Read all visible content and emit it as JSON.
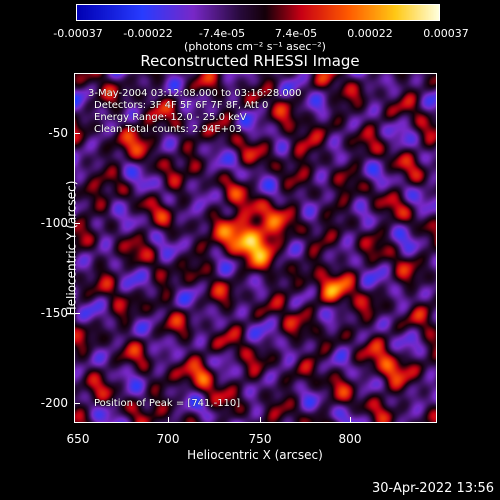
{
  "colorbar": {
    "tick_labels": [
      "-0.00037",
      "-0.00022",
      "-7.4e-05",
      "7.4e-05",
      "0.00022",
      "0.00037"
    ],
    "unit_label": "(photons cm⁻² s⁻¹ asec⁻²)"
  },
  "title": "Reconstructed RHESSI Image",
  "annotations": {
    "time_range": "3-May-2004 03:12:08.000 to 03:16:28.000",
    "detectors": "Detectors: 3F 4F 5F 6F 7F 8F, Att 0",
    "energy_range": "Energy Range: 12.0 - 25.0 keV",
    "clean_counts": "Clean    Total counts: 2.94E+03",
    "peak_position": "Position of Peak = [741,-110]"
  },
  "axes": {
    "xlabel": "Heliocentric X (arcsec)",
    "ylabel": "Heliocentric Y (arcsec)",
    "x_ticks": [
      "650",
      "700",
      "750",
      "800"
    ],
    "y_ticks": [
      "-50",
      "-100",
      "-150",
      "-200"
    ],
    "xlim": [
      650,
      840
    ],
    "ylim": [
      -212,
      -28
    ]
  },
  "timestamp": "30-Apr-2022 13:56",
  "colors": {
    "background": "#000000",
    "foreground": "#ffffff"
  }
}
